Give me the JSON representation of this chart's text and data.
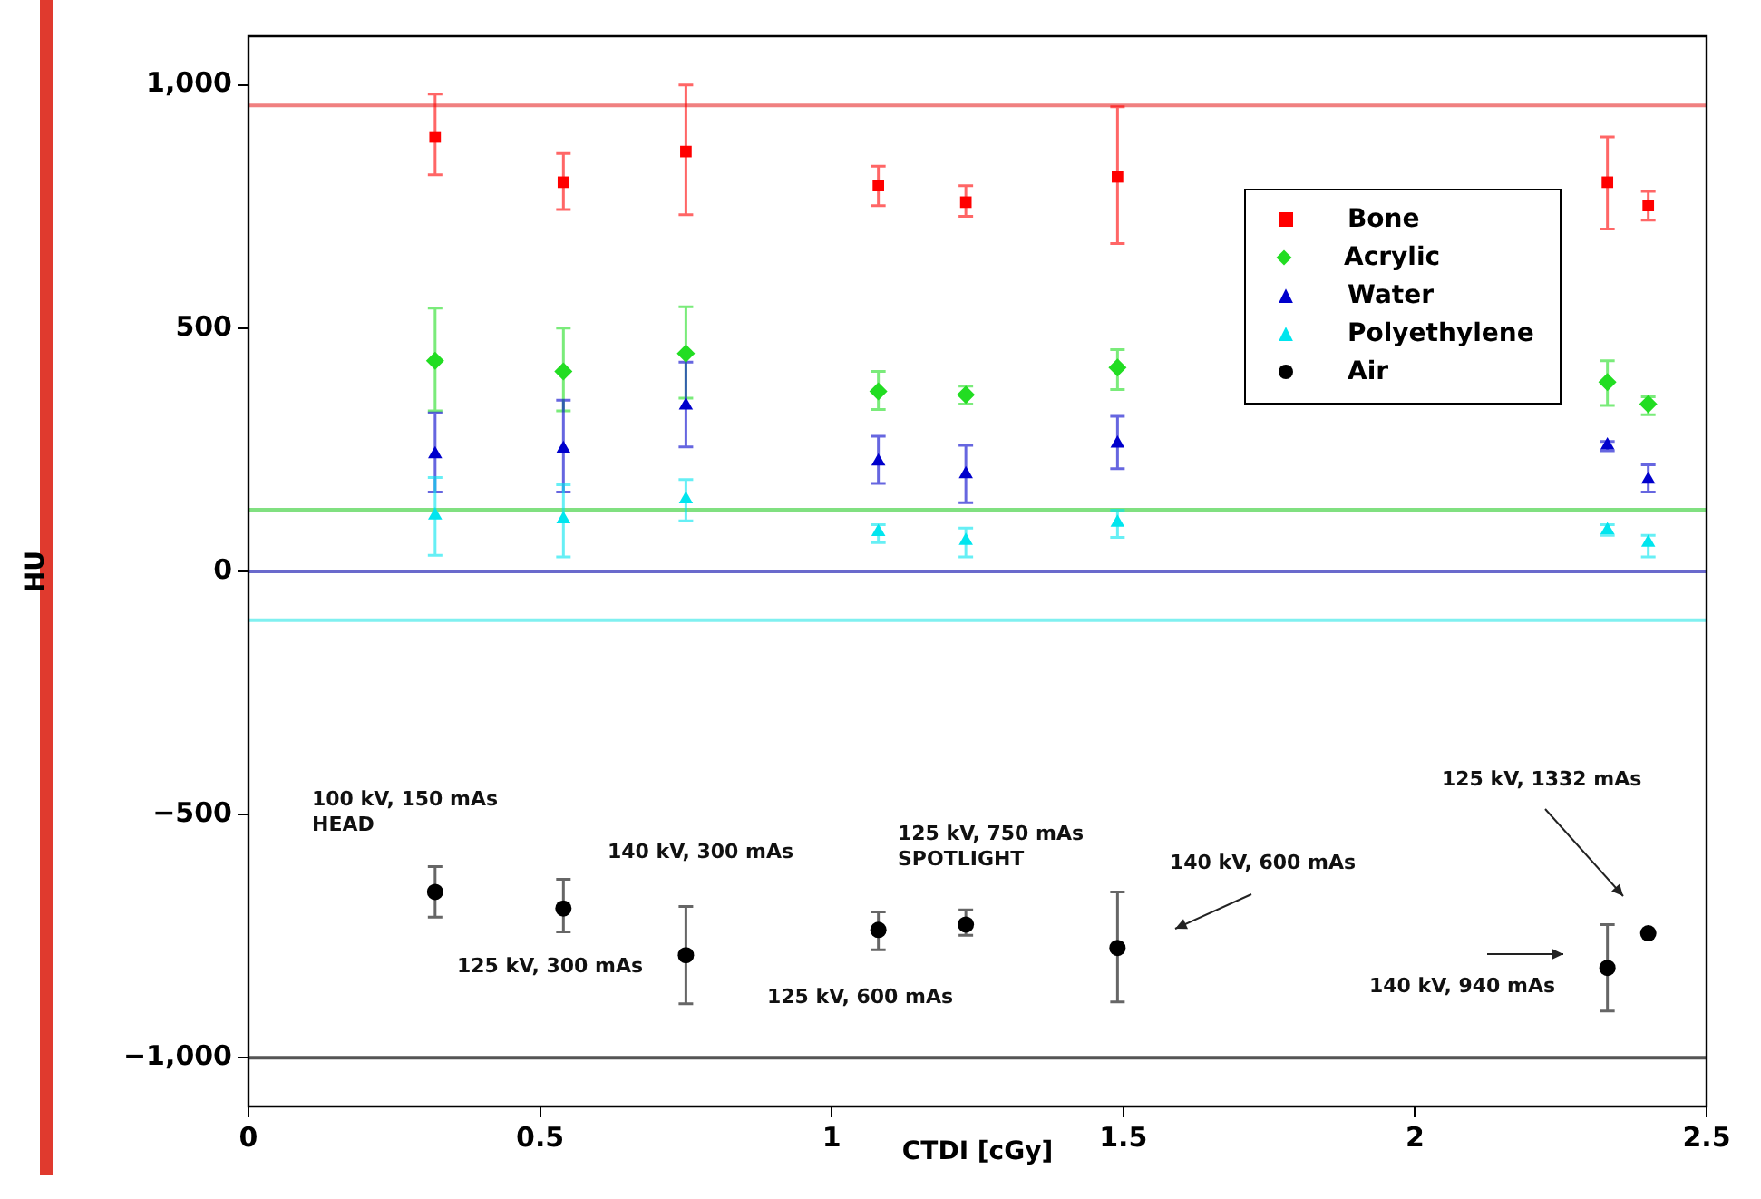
{
  "chart_data": {
    "type": "scatter",
    "xlabel": "CTDI [cGy]",
    "ylabel": "HU",
    "x": [
      0.32,
      0.54,
      0.75,
      1.08,
      1.23,
      1.49,
      2.33,
      2.4
    ],
    "xlim": [
      0,
      2.5
    ],
    "xticks": [
      0,
      0.5,
      1,
      1.5,
      2,
      2.5
    ],
    "ylim": [
      -1100,
      1100
    ],
    "yticks": [
      {
        "value": -1000,
        "label": "−1,000"
      },
      {
        "value": -500,
        "label": "−500"
      },
      0,
      500,
      {
        "value": 1000,
        "label": "1,000"
      }
    ],
    "grid": false,
    "legend": "top right",
    "series": [
      {
        "name": "Bone",
        "color": "#ff0000",
        "marker": "square",
        "values": [
          893,
          800,
          863,
          793,
          759,
          811,
          800,
          752
        ],
        "errors": [
          [
            815,
            981
          ],
          [
            744,
            859
          ],
          [
            733,
            1000
          ],
          [
            752,
            833
          ],
          [
            730,
            793
          ],
          [
            674,
            955
          ],
          [
            704,
            893
          ],
          [
            722,
            781
          ]
        ]
      },
      {
        "name": "Acrylic",
        "color": "#22dd22",
        "marker": "diamond",
        "values": [
          433,
          411,
          448,
          370,
          363,
          419,
          389,
          344
        ],
        "errors": [
          [
            330,
            541
          ],
          [
            330,
            500
          ],
          [
            356,
            544
          ],
          [
            333,
            411
          ],
          [
            344,
            381
          ],
          [
            374,
            456
          ],
          [
            341,
            433
          ],
          [
            322,
            359
          ]
        ]
      },
      {
        "name": "Water",
        "color": "#0000cc",
        "marker": "triangle",
        "values": [
          241,
          252,
          341,
          226,
          200,
          263,
          259,
          189
        ],
        "errors": [
          [
            163,
            326
          ],
          [
            163,
            352
          ],
          [
            256,
            430
          ],
          [
            181,
            278
          ],
          [
            141,
            259
          ],
          [
            211,
            319
          ],
          [
            248,
            267
          ],
          [
            163,
            219
          ]
        ]
      },
      {
        "name": "Polyethylene",
        "color": "#00e5ee",
        "marker": "triangle",
        "values": [
          115,
          107,
          148,
          81,
          63,
          100,
          85,
          59
        ],
        "errors": [
          [
            33,
            193
          ],
          [
            30,
            178
          ],
          [
            104,
            189
          ],
          [
            59,
            96
          ],
          [
            30,
            89
          ],
          [
            70,
            126
          ],
          [
            74,
            96
          ],
          [
            30,
            74
          ]
        ]
      },
      {
        "name": "Air",
        "color": "#000000",
        "marker": "circle",
        "values": [
          -659,
          -693,
          -789,
          -737,
          -726,
          -774,
          -815,
          -744
        ],
        "errors": [
          [
            -711,
            -607
          ],
          [
            -741,
            -633
          ],
          [
            -889,
            -689
          ],
          [
            -778,
            -700
          ],
          [
            -748,
            -696
          ],
          [
            -885,
            -659
          ],
          [
            -904,
            -726
          ],
          null
        ]
      }
    ],
    "ref_lines": [
      {
        "axis": "y",
        "value": 958,
        "color": "#f08080"
      },
      {
        "axis": "y",
        "value": 127,
        "color": "#80e080"
      },
      {
        "axis": "y",
        "value": 0,
        "color": "#6a6acc"
      },
      {
        "axis": "y",
        "value": -100,
        "color": "#80f0f0"
      },
      {
        "axis": "y",
        "value": -1000,
        "color": "#555555"
      }
    ],
    "annotations": [
      "100 kV, 150 mAs\nHEAD",
      "125 kV, 300 mAs",
      "140 kV, 300 mAs",
      "125 kV, 600 mAs",
      "125 kV, 750 mAs\nSPOTLIGHT",
      "140 kV, 600 mAs",
      "125 kV, 1332 mAs",
      "140 kV, 940 mAs"
    ]
  }
}
